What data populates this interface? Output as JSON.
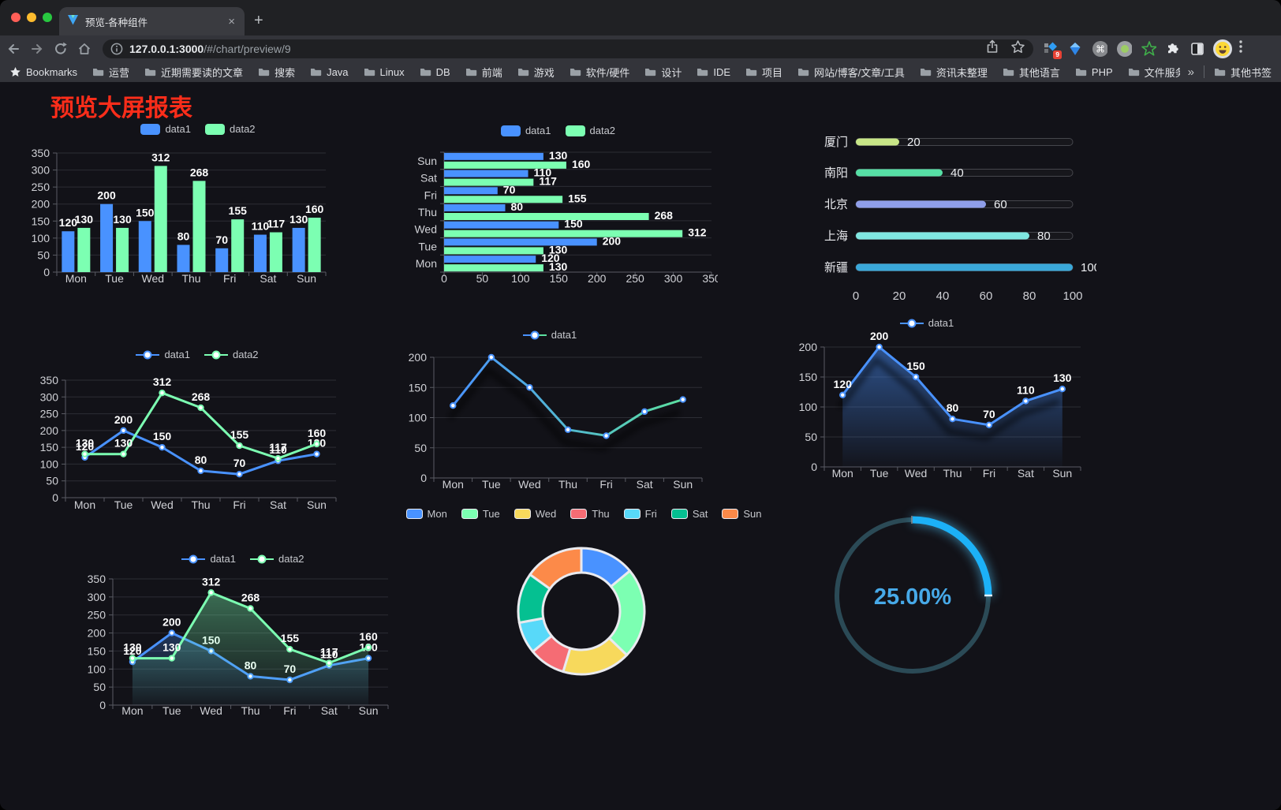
{
  "browser": {
    "tab": {
      "title": "预览-各种组件",
      "close": "×"
    },
    "new_tab_button": "+",
    "address": {
      "host": "127.0.0.1:3000",
      "path": "/#/chart/preview/9"
    },
    "extensions": {
      "badge": "9",
      "command_symbol": "⌘"
    },
    "bookmarks_bar": {
      "star_label": "Bookmarks",
      "folders": [
        "运营",
        "近期需要读的文章",
        "搜索",
        "Java",
        "Linux",
        "DB",
        "前端",
        "游戏",
        "软件/硬件",
        "设计",
        "IDE",
        "项目",
        "网站/博客/文章/工具",
        "资讯未整理",
        "其他语言",
        "PHP",
        "文件服务器"
      ],
      "overflow": "»",
      "other": "其他书签"
    }
  },
  "page": {
    "title": "预览大屏报表",
    "title_color": "#fb2d1a"
  },
  "chart_data": [
    {
      "id": "bar-grouped",
      "type": "bar",
      "title": "",
      "legend_position": "top",
      "categories": [
        "Mon",
        "Tue",
        "Wed",
        "Thu",
        "Fri",
        "Sat",
        "Sun"
      ],
      "series": [
        {
          "name": "data1",
          "color": "#4992ff",
          "values": [
            120,
            200,
            150,
            80,
            70,
            110,
            130
          ]
        },
        {
          "name": "data2",
          "color": "#7cffb2",
          "values": [
            130,
            130,
            312,
            268,
            155,
            117,
            160
          ]
        }
      ],
      "ylim": [
        0,
        350
      ],
      "ystep": 50,
      "grid": true,
      "labels": true
    },
    {
      "id": "hbar-grouped",
      "type": "hbar",
      "legend_position": "top",
      "categories": [
        "Mon",
        "Tue",
        "Wed",
        "Thu",
        "Fri",
        "Sat",
        "Sun"
      ],
      "display_order": [
        "Sun",
        "Sat",
        "Fri",
        "Thu",
        "Wed",
        "Tue",
        "Mon"
      ],
      "series": [
        {
          "name": "data1",
          "color": "#4992ff",
          "values": [
            120,
            200,
            150,
            80,
            70,
            110,
            130
          ]
        },
        {
          "name": "data2",
          "color": "#7cffb2",
          "values": [
            130,
            130,
            312,
            268,
            155,
            117,
            160
          ]
        }
      ],
      "xlim": [
        0,
        350
      ],
      "xstep": 50,
      "labels": true
    },
    {
      "id": "city-progress",
      "type": "progress",
      "items": [
        {
          "label": "厦门",
          "value": 20,
          "color": "#c8e687"
        },
        {
          "label": "南阳",
          "value": 40,
          "color": "#56dfa5"
        },
        {
          "label": "北京",
          "value": 60,
          "color": "#8f9ee9"
        },
        {
          "label": "上海",
          "value": 80,
          "color": "#7fe6e0"
        },
        {
          "label": "新疆",
          "value": 100,
          "color": "#3aa8d9"
        }
      ],
      "xlim": [
        0,
        100
      ],
      "xticks": [
        0,
        20,
        40,
        60,
        80,
        100
      ]
    },
    {
      "id": "line-two",
      "type": "line",
      "legend_position": "top",
      "categories": [
        "Mon",
        "Tue",
        "Wed",
        "Thu",
        "Fri",
        "Sat",
        "Sun"
      ],
      "series": [
        {
          "name": "data1",
          "color": "#4992ff",
          "values": [
            120,
            200,
            150,
            80,
            70,
            110,
            130
          ]
        },
        {
          "name": "data2",
          "color": "#7cffb2",
          "values": [
            130,
            130,
            312,
            268,
            155,
            117,
            160
          ]
        }
      ],
      "ylim": [
        0,
        350
      ],
      "ystep": 50,
      "labels": true
    },
    {
      "id": "line-gradient",
      "type": "line",
      "legend_position": "top",
      "categories": [
        "Mon",
        "Tue",
        "Wed",
        "Thu",
        "Fri",
        "Sat",
        "Sun"
      ],
      "series": [
        {
          "name": "data1",
          "color": "#4992ff",
          "color2": "#5ce0a0",
          "values": [
            120,
            200,
            150,
            80,
            70,
            110,
            130
          ]
        }
      ],
      "ylim": [
        0,
        200
      ],
      "ystep": 50,
      "labels": false,
      "shadow": true
    },
    {
      "id": "line-area",
      "type": "line",
      "legend_position": "top",
      "categories": [
        "Mon",
        "Tue",
        "Wed",
        "Thu",
        "Fri",
        "Sat",
        "Sun"
      ],
      "series": [
        {
          "name": "data1",
          "color": "#4992ff",
          "area": true,
          "values": [
            120,
            200,
            150,
            80,
            70,
            110,
            130
          ]
        }
      ],
      "ylim": [
        0,
        200
      ],
      "ystep": 50,
      "labels": true,
      "shadow": true
    },
    {
      "id": "line-area-two",
      "type": "line",
      "legend_position": "top",
      "categories": [
        "Mon",
        "Tue",
        "Wed",
        "Thu",
        "Fri",
        "Sat",
        "Sun"
      ],
      "series": [
        {
          "name": "data1",
          "color": "#4992ff",
          "area": true,
          "values": [
            120,
            200,
            150,
            80,
            70,
            110,
            130
          ]
        },
        {
          "name": "data2",
          "color": "#7cffb2",
          "area": true,
          "values": [
            130,
            130,
            312,
            268,
            155,
            117,
            160
          ]
        }
      ],
      "ylim": [
        0,
        350
      ],
      "ystep": 50,
      "labels": true
    },
    {
      "id": "donut",
      "type": "pie",
      "legend_position": "top",
      "items": [
        {
          "label": "Mon",
          "value": 120,
          "color": "#4992ff"
        },
        {
          "label": "Tue",
          "value": 200,
          "color": "#7cffb2"
        },
        {
          "label": "Wed",
          "value": 150,
          "color": "#f7d95c"
        },
        {
          "label": "Thu",
          "value": 80,
          "color": "#f56c74"
        },
        {
          "label": "Fri",
          "value": 70,
          "color": "#58d9f9"
        },
        {
          "label": "Sat",
          "value": 110,
          "color": "#05c091"
        },
        {
          "label": "Sun",
          "value": 130,
          "color": "#fc8a49"
        }
      ]
    },
    {
      "id": "ring",
      "type": "gauge",
      "text": "25.00%",
      "percent": 25,
      "color": "#1cb1f7",
      "track": "#2b4a56",
      "text_color": "#47a9e8"
    }
  ]
}
